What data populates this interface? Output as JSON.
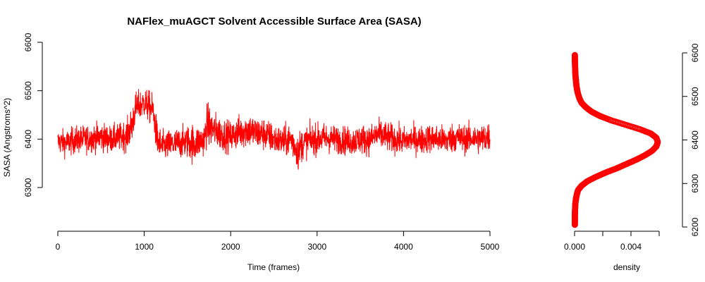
{
  "chart_data": [
    {
      "type": "line",
      "title": "NAFlex_muAGCT Solvent Accessible Surface Area (SASA)",
      "xlabel": "Time (frames)",
      "ylabel": "SASA (Angstroms^2)",
      "xlim": [
        0,
        5000
      ],
      "ylim": [
        6220,
        6600
      ],
      "x_ticks": [
        0,
        1000,
        2000,
        3000,
        4000,
        5000
      ],
      "y_ticks": [
        6300,
        6400,
        6500,
        6600
      ],
      "color": "#ff0000",
      "series": [
        {
          "x": [
            0,
            100,
            200,
            300,
            400,
            500,
            600,
            700,
            800,
            860,
            900,
            1000,
            1100,
            1150,
            1200,
            1300,
            1400,
            1500,
            1580,
            1600,
            1700,
            1720,
            1800,
            1900,
            2000,
            2100,
            2200,
            2300,
            2400,
            2500,
            2600,
            2700,
            2790,
            2800,
            2900,
            3000,
            3100,
            3200,
            3300,
            3400,
            3500,
            3600,
            3700,
            3800,
            3900,
            4000,
            4100,
            4200,
            4300,
            4400,
            4500,
            4600,
            4700,
            4800,
            4900,
            5000
          ],
          "mean": [
            6395,
            6392,
            6398,
            6400,
            6402,
            6405,
            6400,
            6403,
            6408,
            6430,
            6465,
            6475,
            6460,
            6400,
            6385,
            6388,
            6392,
            6395,
            6390,
            6393,
            6400,
            6430,
            6420,
            6410,
            6405,
            6415,
            6420,
            6412,
            6410,
            6400,
            6395,
            6400,
            6370,
            6385,
            6398,
            6400,
            6402,
            6400,
            6398,
            6395,
            6400,
            6398,
            6410,
            6405,
            6400,
            6396,
            6400,
            6398,
            6402,
            6400,
            6398,
            6405,
            6400,
            6402,
            6400,
            6405
          ],
          "spread": [
            45,
            48,
            50,
            50,
            50,
            52,
            50,
            50,
            55,
            70,
            55,
            55,
            60,
            65,
            55,
            55,
            55,
            60,
            75,
            60,
            60,
            80,
            65,
            60,
            55,
            60,
            65,
            60,
            60,
            55,
            55,
            60,
            65,
            60,
            55,
            55,
            55,
            50,
            52,
            50,
            55,
            52,
            55,
            55,
            52,
            50,
            50,
            52,
            52,
            52,
            52,
            55,
            52,
            52,
            55,
            55
          ]
        }
      ]
    },
    {
      "type": "scatter",
      "xlabel": "density",
      "xlim": [
        0,
        0.0062
      ],
      "ylim": [
        6200,
        6620
      ],
      "x_ticks": [
        0.0,
        0.004
      ],
      "x_ticklabels": [
        "0.000",
        "0.004"
      ],
      "x_ticks_unlabeled": [
        0.002,
        0.006
      ],
      "y_ticks": [
        6200,
        6300,
        6400,
        6500,
        6600
      ],
      "color": "#ff0000",
      "density_y": [
        6205,
        6215,
        6225,
        6235,
        6245,
        6255,
        6265,
        6275,
        6285,
        6295,
        6305,
        6315,
        6325,
        6335,
        6345,
        6355,
        6365,
        6375,
        6385,
        6395,
        6405,
        6415,
        6425,
        6435,
        6445,
        6455,
        6465,
        6475,
        6485,
        6495,
        6505,
        6515,
        6525,
        6535,
        6545,
        6555,
        6565,
        6575,
        6585,
        6595
      ],
      "density_x": [
        2e-05,
        2e-05,
        2e-05,
        3e-05,
        4e-05,
        6e-05,
        0.0001,
        0.00016,
        0.00025,
        0.0005,
        0.0009,
        0.0015,
        0.0022,
        0.003,
        0.0037,
        0.0044,
        0.005,
        0.0055,
        0.0058,
        0.0059,
        0.0058,
        0.0054,
        0.0046,
        0.0036,
        0.0026,
        0.0018,
        0.0012,
        0.0008,
        0.0005,
        0.00035,
        0.00025,
        0.00018,
        0.00013,
        0.0001,
        7e-05,
        5e-05,
        4e-05,
        3e-05,
        2e-05,
        2e-05
      ]
    }
  ]
}
